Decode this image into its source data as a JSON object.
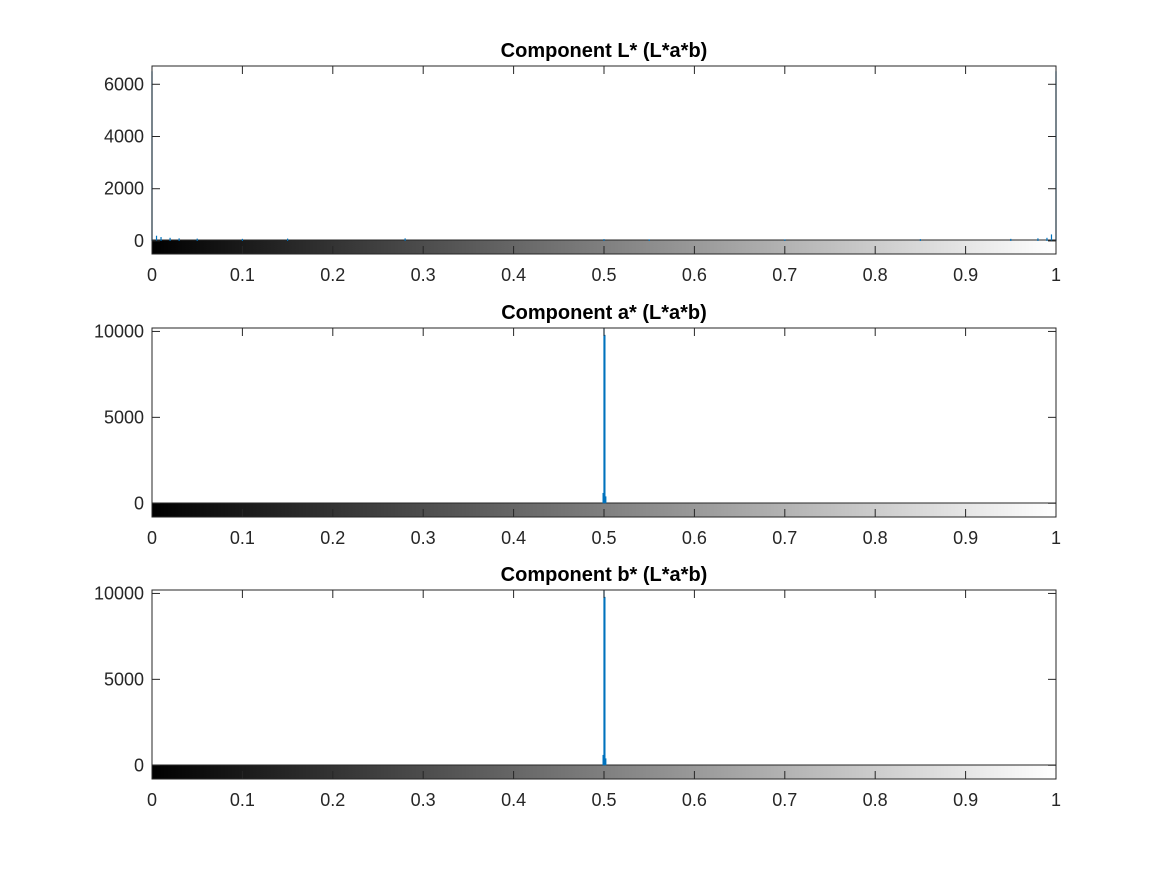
{
  "chart_data": [
    {
      "type": "bar",
      "title": "Component L* (L*a*b)",
      "xlim": [
        0,
        1
      ],
      "ylim": [
        -500,
        6700
      ],
      "xticks": [
        "0",
        "0.1",
        "0.2",
        "0.3",
        "0.4",
        "0.5",
        "0.6",
        "0.7",
        "0.8",
        "0.9",
        "1"
      ],
      "yticks": [
        "0",
        "2000",
        "4000",
        "6000"
      ],
      "ytick_values": [
        0,
        2000,
        4000,
        6000
      ],
      "colorbar": "grayscale gradient from black at 0 to white at 1",
      "series": [
        {
          "x": [
            0.0,
            0.005,
            0.01,
            0.02,
            0.03,
            0.05,
            0.1,
            0.15,
            0.28,
            0.5,
            0.55,
            0.7,
            0.85,
            0.95,
            0.98,
            0.99,
            0.995,
            1.0
          ],
          "values": [
            6500,
            200,
            150,
            120,
            100,
            90,
            80,
            90,
            100,
            70,
            60,
            60,
            70,
            80,
            100,
            120,
            250,
            6500
          ]
        }
      ]
    },
    {
      "type": "bar",
      "title": "Component a* (L*a*b)",
      "xlim": [
        0,
        1
      ],
      "ylim": [
        -800,
        10200
      ],
      "xticks": [
        "0",
        "0.1",
        "0.2",
        "0.3",
        "0.4",
        "0.5",
        "0.6",
        "0.7",
        "0.8",
        "0.9",
        "1"
      ],
      "yticks": [
        "0",
        "5000",
        "10000"
      ],
      "ytick_values": [
        0,
        5000,
        10000
      ],
      "colorbar": "grayscale gradient from black at 0 to white at 1",
      "series": [
        {
          "x": [
            0.499,
            0.5,
            0.501,
            0.502
          ],
          "values": [
            600,
            10200,
            9800,
            400
          ]
        }
      ]
    },
    {
      "type": "bar",
      "title": "Component b* (L*a*b)",
      "xlim": [
        0,
        1
      ],
      "ylim": [
        -800,
        10200
      ],
      "xticks": [
        "0",
        "0.1",
        "0.2",
        "0.3",
        "0.4",
        "0.5",
        "0.6",
        "0.7",
        "0.8",
        "0.9",
        "1"
      ],
      "yticks": [
        "0",
        "5000",
        "10000"
      ],
      "ytick_values": [
        0,
        5000,
        10000
      ],
      "colorbar": "grayscale gradient from black at 0 to white at 1",
      "series": [
        {
          "x": [
            0.499,
            0.5,
            0.501,
            0.502
          ],
          "values": [
            600,
            10200,
            9800,
            400
          ]
        }
      ]
    }
  ],
  "colors": {
    "series": "#0072BD",
    "axis": "#262626",
    "background": "#ffffff"
  }
}
